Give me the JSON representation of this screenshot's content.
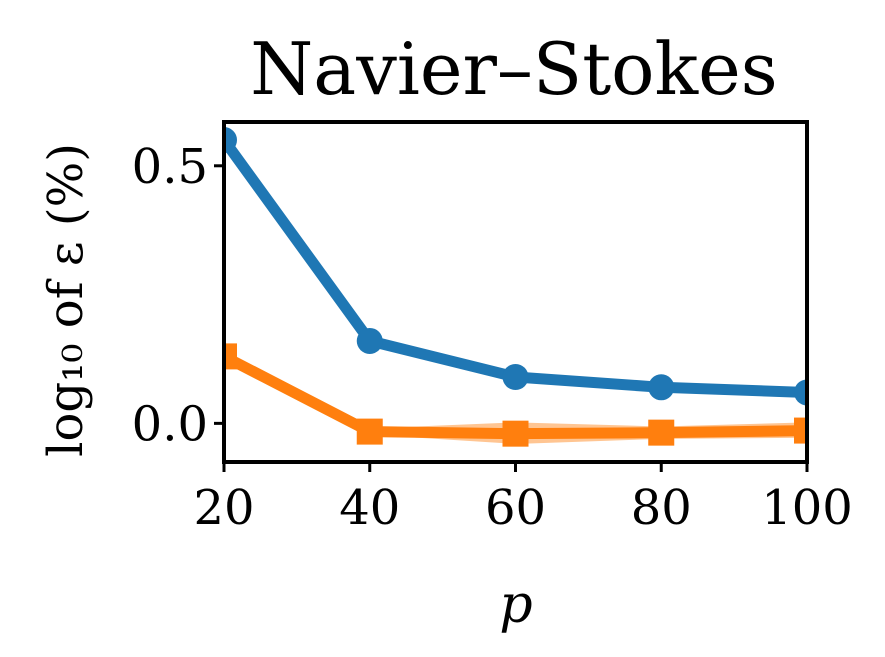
{
  "chart_data": {
    "type": "line",
    "title": "Navier–Stokes",
    "xlabel": "p",
    "ylabel": "log₁₀ of ε (%)",
    "x": [
      20,
      40,
      60,
      80,
      100
    ],
    "x_ticks": [
      "20",
      "40",
      "60",
      "80",
      "100"
    ],
    "y_ticks": [
      {
        "value": 0.0,
        "label": "0.0"
      },
      {
        "value": 0.5,
        "label": "0.5"
      }
    ],
    "xlim": [
      20,
      100
    ],
    "ylim": [
      -0.075,
      0.585
    ],
    "grid": false,
    "series": [
      {
        "color": "#1f77b4",
        "marker": "circle",
        "values": [
          0.55,
          0.16,
          0.09,
          0.07,
          0.06
        ]
      },
      {
        "color": "#ff7f0e",
        "marker": "square",
        "values": [
          0.13,
          -0.016,
          -0.02,
          -0.018,
          -0.014
        ],
        "band_lower": [
          0.12,
          -0.022,
          -0.04,
          -0.03,
          -0.028
        ],
        "band_upper": [
          0.14,
          -0.01,
          0.002,
          -0.006,
          0.002
        ]
      }
    ]
  }
}
